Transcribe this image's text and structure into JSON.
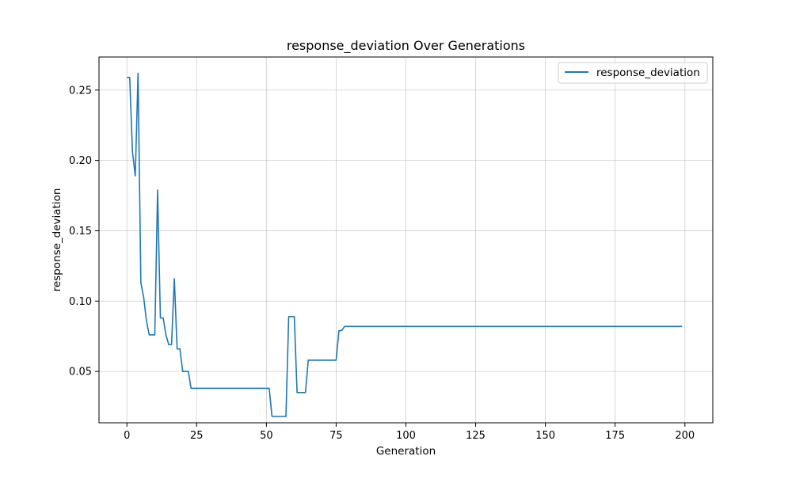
{
  "chart_data": {
    "type": "line",
    "title": "response_deviation Over Generations",
    "xlabel": "Generation",
    "ylabel": "response_deviation",
    "xlim": [
      -10,
      210
    ],
    "ylim": [
      0.0135,
      0.2735
    ],
    "xticks": [
      0,
      25,
      50,
      75,
      100,
      125,
      150,
      175,
      200
    ],
    "yticks": [
      0.05,
      0.1,
      0.15,
      0.2,
      0.25
    ],
    "ytick_labels": [
      "0.05",
      "0.10",
      "0.15",
      "0.20",
      "0.25"
    ],
    "grid": true,
    "legend_position": "top-right",
    "colors": {
      "series": "#1f77b4"
    },
    "series": [
      {
        "name": "response_deviation",
        "points": [
          [
            0,
            0.259
          ],
          [
            1,
            0.259
          ],
          [
            2,
            0.206
          ],
          [
            3,
            0.189
          ],
          [
            4,
            0.262
          ],
          [
            5,
            0.113
          ],
          [
            6,
            0.103
          ],
          [
            7,
            0.086
          ],
          [
            8,
            0.076
          ],
          [
            9,
            0.076
          ],
          [
            10,
            0.076
          ],
          [
            11,
            0.179
          ],
          [
            12,
            0.088
          ],
          [
            13,
            0.088
          ],
          [
            14,
            0.076
          ],
          [
            15,
            0.069
          ],
          [
            16,
            0.069
          ],
          [
            17,
            0.116
          ],
          [
            18,
            0.066
          ],
          [
            19,
            0.066
          ],
          [
            20,
            0.05
          ],
          [
            21,
            0.05
          ],
          [
            22,
            0.05
          ],
          [
            23,
            0.038
          ],
          [
            24,
            0.038
          ],
          [
            25,
            0.038
          ],
          [
            30,
            0.038
          ],
          [
            35,
            0.038
          ],
          [
            40,
            0.038
          ],
          [
            45,
            0.038
          ],
          [
            50,
            0.038
          ],
          [
            51,
            0.038
          ],
          [
            52,
            0.018
          ],
          [
            53,
            0.018
          ],
          [
            54,
            0.018
          ],
          [
            55,
            0.018
          ],
          [
            56,
            0.018
          ],
          [
            57,
            0.018
          ],
          [
            58,
            0.089
          ],
          [
            59,
            0.089
          ],
          [
            60,
            0.089
          ],
          [
            61,
            0.035
          ],
          [
            62,
            0.035
          ],
          [
            63,
            0.035
          ],
          [
            64,
            0.035
          ],
          [
            65,
            0.058
          ],
          [
            66,
            0.058
          ],
          [
            70,
            0.058
          ],
          [
            75,
            0.058
          ],
          [
            76,
            0.079
          ],
          [
            77,
            0.079
          ],
          [
            78,
            0.082
          ],
          [
            79,
            0.082
          ],
          [
            100,
            0.082
          ],
          [
            125,
            0.082
          ],
          [
            150,
            0.082
          ],
          [
            175,
            0.082
          ],
          [
            199,
            0.082
          ]
        ]
      }
    ]
  }
}
